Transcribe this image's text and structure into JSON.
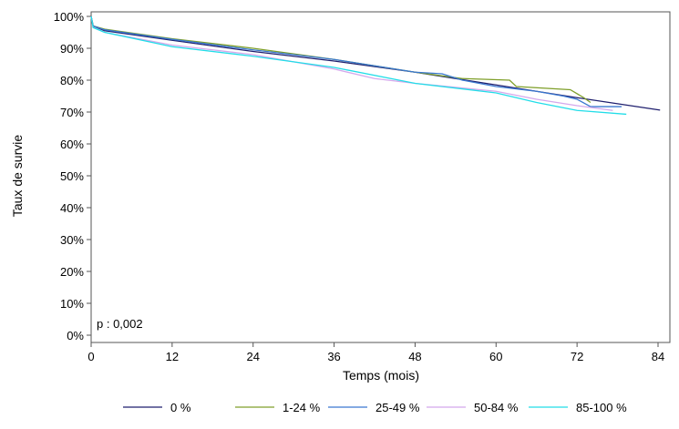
{
  "chart_data": {
    "type": "line",
    "title": "",
    "xlabel": "Temps (mois)",
    "ylabel": "Taux de survie",
    "xlim": [
      0,
      84
    ],
    "ylim": [
      0,
      100
    ],
    "xticks": [
      "0",
      "12",
      "24",
      "36",
      "48",
      "60",
      "72",
      "84"
    ],
    "yticks": [
      "0%",
      "10%",
      "20%",
      "30%",
      "40%",
      "50%",
      "60%",
      "70%",
      "80%",
      "90%",
      "100%"
    ],
    "grid": false,
    "legend_position": "bottom",
    "annotation": "p : 0,002",
    "series": [
      {
        "name": "0 %",
        "color": "#1f1f6e",
        "x": [
          0,
          0.3,
          2,
          12,
          24,
          36,
          48,
          60,
          72,
          84.3
        ],
        "y": [
          100,
          97,
          95.5,
          92.5,
          89,
          86,
          82.5,
          78.5,
          74.5,
          70.6
        ]
      },
      {
        "name": "1-24 %",
        "color": "#7f9f2a",
        "x": [
          0,
          0.3,
          2,
          12,
          24,
          36,
          48,
          55,
          62,
          63,
          71,
          73,
          74
        ],
        "y": [
          100,
          97,
          96,
          93,
          90,
          86.5,
          82.5,
          80.5,
          80,
          78,
          77,
          74.5,
          73
        ]
      },
      {
        "name": "25-49 %",
        "color": "#3a78d0",
        "x": [
          0,
          0.3,
          2,
          12,
          24,
          36,
          48,
          52,
          55,
          60,
          66,
          70,
          72,
          74,
          78.6
        ],
        "y": [
          100,
          97,
          95.8,
          92.8,
          89.5,
          86.5,
          82.5,
          82,
          80,
          78,
          76.5,
          75,
          74,
          71.7,
          71.7
        ]
      },
      {
        "name": "50-84 %",
        "color": "#d4a8ec",
        "x": [
          0,
          0.3,
          2,
          12,
          24,
          36,
          42,
          48,
          60,
          66,
          72,
          77.3
        ],
        "y": [
          100,
          96.5,
          95,
          91,
          88,
          83.5,
          80.5,
          79,
          76.5,
          74,
          72,
          70.5
        ]
      },
      {
        "name": "85-100 %",
        "color": "#22dde8",
        "x": [
          0,
          0.3,
          2,
          12,
          24,
          36,
          48,
          60,
          66,
          72,
          79.3
        ],
        "y": [
          100,
          96.5,
          95,
          90.5,
          87.5,
          84,
          79,
          76,
          73,
          70.5,
          69.3
        ]
      }
    ]
  }
}
